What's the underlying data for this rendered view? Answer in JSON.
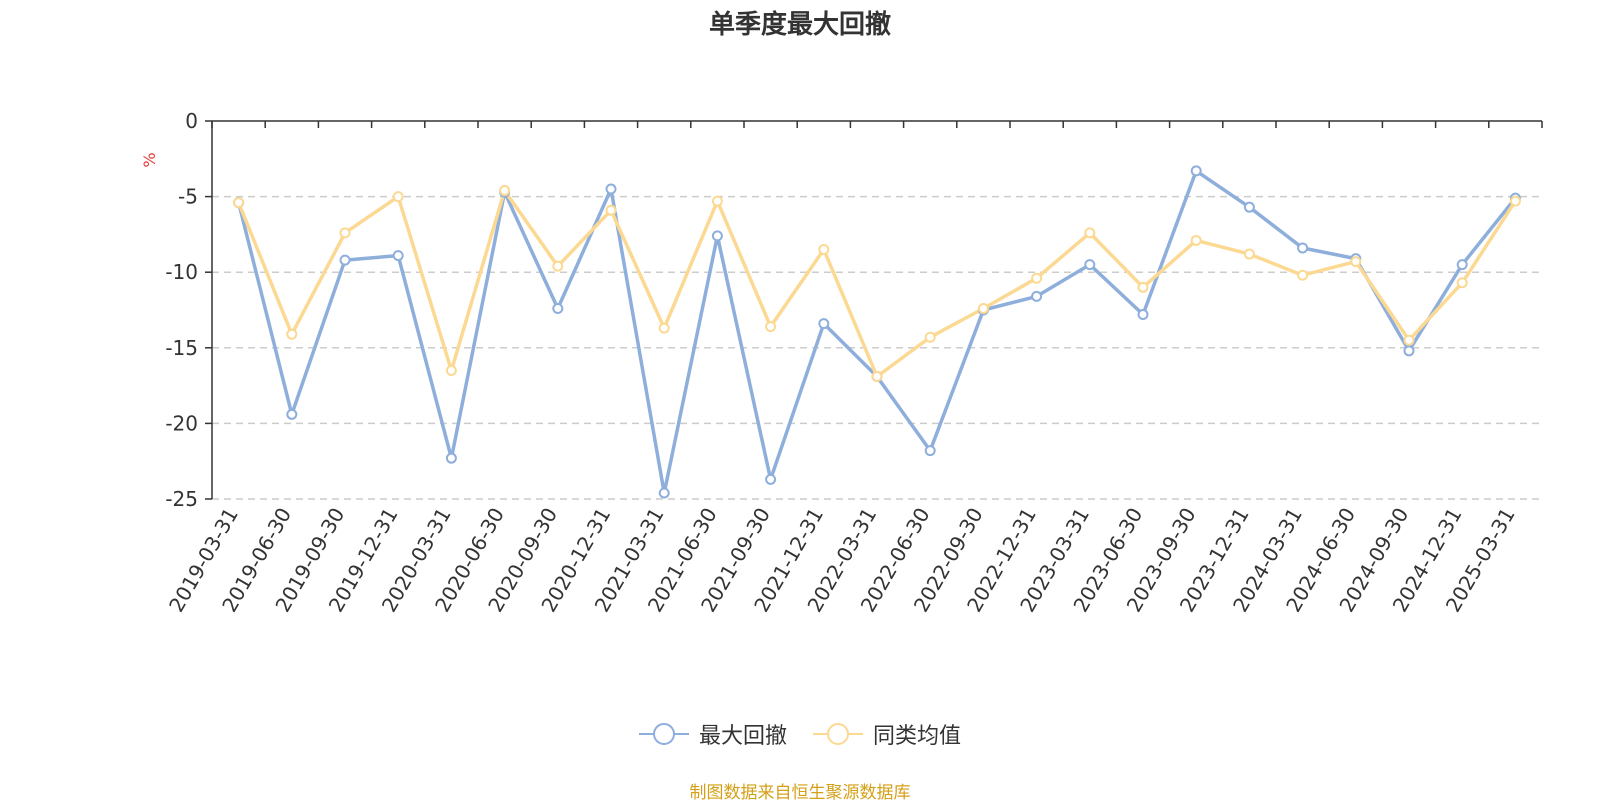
{
  "chart_data": {
    "type": "line",
    "title": "单季度最大回撤",
    "ylabel": "%",
    "ylim": [
      -25,
      0
    ],
    "yticks": [
      0,
      -5,
      -10,
      -15,
      -20,
      -25
    ],
    "grid": true,
    "legend_position": "bottom",
    "categories": [
      "2019-03-31",
      "2019-06-30",
      "2019-09-30",
      "2019-12-31",
      "2020-03-31",
      "2020-06-30",
      "2020-09-30",
      "2020-12-31",
      "2021-03-31",
      "2021-06-30",
      "2021-09-30",
      "2021-12-31",
      "2022-03-31",
      "2022-06-30",
      "2022-09-30",
      "2022-12-31",
      "2023-03-31",
      "2023-06-30",
      "2023-09-30",
      "2023-12-31",
      "2024-03-31",
      "2024-06-30",
      "2024-09-30",
      "2024-12-31",
      "2025-03-31"
    ],
    "series": [
      {
        "name": "最大回撤",
        "color": "#8eaedb",
        "values": [
          -5.4,
          -19.4,
          -9.2,
          -8.9,
          -22.3,
          -4.7,
          -12.4,
          -4.5,
          -24.6,
          -7.6,
          -23.7,
          -13.4,
          -16.9,
          -21.8,
          -12.5,
          -11.6,
          -9.5,
          -12.8,
          -3.3,
          -5.7,
          -8.4,
          -9.1,
          -15.2,
          -9.5,
          -5.1
        ]
      },
      {
        "name": "同类均值",
        "color": "#fcd992",
        "values": [
          -5.4,
          -14.1,
          -7.4,
          -5.0,
          -16.5,
          -4.6,
          -9.6,
          -5.9,
          -13.7,
          -5.3,
          -13.6,
          -8.5,
          -16.9,
          -14.3,
          -12.4,
          -10.4,
          -7.4,
          -11.0,
          -7.9,
          -8.8,
          -10.2,
          -9.3,
          -14.5,
          -10.7,
          -5.3
        ]
      }
    ]
  },
  "source_note": "制图数据来自恒生聚源数据库"
}
